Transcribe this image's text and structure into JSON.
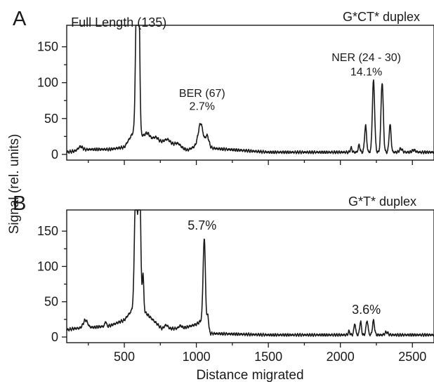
{
  "ylabel": "Signal (rel. units)",
  "xlabel": "Distance migrated",
  "chart_data": [
    {
      "type": "line",
      "panel": "A",
      "title": "G*CT* duplex",
      "xlim": [
        100,
        2650
      ],
      "ylim": [
        -8,
        180
      ],
      "xticks": [
        500,
        1000,
        1500,
        2000,
        2500
      ],
      "xtick_labels_shown": false,
      "yticks": [
        0,
        50,
        100,
        150
      ],
      "ytick_labels": [
        "0",
        "50",
        "100",
        "150"
      ],
      "annotations": [
        {
          "text": "Full Length (135)",
          "x": 130,
          "y": 178
        },
        {
          "text": "BER (67)",
          "x": 1040,
          "y": 80
        },
        {
          "text": "2.7%",
          "x": 1040,
          "y": 62
        },
        {
          "text": "NER (24 - 30)",
          "x": 2180,
          "y": 130
        },
        {
          "text": "14.1%",
          "x": 2180,
          "y": 110
        }
      ],
      "baseline": [
        [
          100,
          3
        ],
        [
          200,
          6
        ],
        [
          260,
          7
        ],
        [
          400,
          7
        ],
        [
          500,
          10
        ],
        [
          560,
          30
        ],
        [
          940,
          6
        ],
        [
          1000,
          12
        ],
        [
          1140,
          8
        ],
        [
          1500,
          3
        ],
        [
          2000,
          3
        ],
        [
          2650,
          3
        ]
      ],
      "peaks": [
        {
          "x": 195,
          "height": 5,
          "width": 15
        },
        {
          "x": 585,
          "height": 180,
          "width": 8
        },
        {
          "x": 600,
          "height": 200,
          "width": 7
        },
        {
          "x": 660,
          "height": 6,
          "width": 15
        },
        {
          "x": 720,
          "height": 4,
          "width": 15
        },
        {
          "x": 800,
          "height": 6,
          "width": 20
        },
        {
          "x": 870,
          "height": 5,
          "width": 20
        },
        {
          "x": 1030,
          "height": 32,
          "width": 16
        },
        {
          "x": 1075,
          "height": 16,
          "width": 12
        },
        {
          "x": 2075,
          "height": 6,
          "width": 6
        },
        {
          "x": 2130,
          "height": 10,
          "width": 6
        },
        {
          "x": 2175,
          "height": 37,
          "width": 7
        },
        {
          "x": 2230,
          "height": 99,
          "width": 8
        },
        {
          "x": 2290,
          "height": 97,
          "width": 8
        },
        {
          "x": 2345,
          "height": 38,
          "width": 7
        },
        {
          "x": 2420,
          "height": 5,
          "width": 10
        },
        {
          "x": 2510,
          "height": 3,
          "width": 12
        }
      ]
    },
    {
      "type": "line",
      "panel": "B",
      "title": "G*T* duplex",
      "xlim": [
        100,
        2650
      ],
      "ylim": [
        -8,
        180
      ],
      "xticks": [
        500,
        1000,
        1500,
        2000,
        2500
      ],
      "xtick_labels": [
        "500",
        "1000",
        "1500",
        "2000",
        "2500"
      ],
      "yticks": [
        0,
        50,
        100,
        150
      ],
      "ytick_labels": [
        "0",
        "50",
        "100",
        "150"
      ],
      "annotations": [
        {
          "text": "5.7%",
          "x": 1040,
          "y": 152
        },
        {
          "text": "3.6%",
          "x": 2180,
          "y": 33
        }
      ],
      "baseline": [
        [
          100,
          10
        ],
        [
          150,
          12
        ],
        [
          300,
          14
        ],
        [
          400,
          16
        ],
        [
          500,
          24
        ],
        [
          560,
          40
        ],
        [
          620,
          40
        ],
        [
          760,
          12
        ],
        [
          900,
          12
        ],
        [
          1000,
          18
        ],
        [
          1040,
          24
        ],
        [
          1100,
          5
        ],
        [
          1500,
          3
        ],
        [
          2000,
          3
        ],
        [
          2650,
          3
        ]
      ],
      "peaks": [
        {
          "x": 230,
          "height": 11,
          "width": 15
        },
        {
          "x": 370,
          "height": 7,
          "width": 5
        },
        {
          "x": 580,
          "height": 190,
          "width": 9
        },
        {
          "x": 605,
          "height": 210,
          "width": 8
        },
        {
          "x": 630,
          "height": 50,
          "width": 5
        },
        {
          "x": 790,
          "height": 5,
          "width": 12
        },
        {
          "x": 890,
          "height": 4,
          "width": 12
        },
        {
          "x": 1055,
          "height": 120,
          "width": 8
        },
        {
          "x": 1080,
          "height": 20,
          "width": 5
        },
        {
          "x": 2060,
          "height": 5,
          "width": 6
        },
        {
          "x": 2100,
          "height": 16,
          "width": 6
        },
        {
          "x": 2140,
          "height": 19,
          "width": 6
        },
        {
          "x": 2185,
          "height": 20,
          "width": 7
        },
        {
          "x": 2230,
          "height": 20,
          "width": 7
        },
        {
          "x": 2320,
          "height": 4,
          "width": 10
        }
      ]
    }
  ]
}
